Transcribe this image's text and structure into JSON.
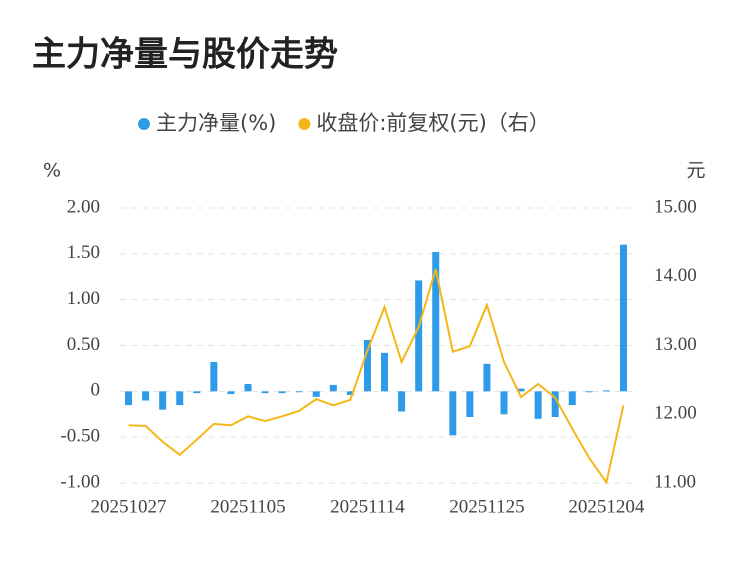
{
  "chart_data": {
    "type": "bar-line",
    "title": "主力净量与股价走势",
    "y_label": "%",
    "y2_label": "元",
    "categories": [
      "20251027",
      null,
      null,
      null,
      null,
      null,
      null,
      "20251105",
      null,
      null,
      null,
      null,
      null,
      null,
      "20251114",
      null,
      null,
      null,
      null,
      null,
      null,
      "20251125",
      null,
      null,
      null,
      null,
      null,
      null,
      "20251204",
      null
    ],
    "series": [
      {
        "name": "主力净量(%)",
        "type": "bar",
        "color": "#2e9be8",
        "values": [
          -0.15,
          -0.1,
          -0.2,
          -0.15,
          -0.02,
          0.32,
          -0.03,
          0.08,
          -0.02,
          -0.02,
          -0.01,
          -0.06,
          0.07,
          -0.04,
          0.56,
          0.42,
          -0.22,
          1.21,
          1.52,
          -0.48,
          -0.28,
          0.3,
          -0.25,
          0.03,
          -0.3,
          -0.28,
          -0.15,
          -0.01,
          0.01,
          1.6
        ]
      },
      {
        "name": "收盘价:前复权(元)（右）",
        "type": "line",
        "axis": "y2",
        "color": "#f5b717",
        "values": [
          11.84,
          11.83,
          11.6,
          11.41,
          11.63,
          11.86,
          11.84,
          11.97,
          11.9,
          11.97,
          12.05,
          12.22,
          12.13,
          12.21,
          12.93,
          13.56,
          12.76,
          13.27,
          14.11,
          12.91,
          12.99,
          13.59,
          12.76,
          12.25,
          12.44,
          12.24,
          11.79,
          11.36,
          11.01,
          12.13
        ]
      }
    ],
    "ylim": [
      -1,
      2
    ],
    "yticks": [
      {
        "value": -1,
        "label": "-1.00"
      },
      {
        "value": -0.5,
        "label": "-0.50"
      },
      0,
      {
        "value": 0.5,
        "label": "0.50"
      },
      {
        "value": 1,
        "label": "1.00"
      },
      {
        "value": 1.5,
        "label": "1.50"
      },
      {
        "value": 2,
        "label": "2.00"
      }
    ],
    "y2lim": [
      11,
      15
    ],
    "y2ticks": [
      {
        "value": 11,
        "label": "11.00"
      },
      {
        "value": 12,
        "label": "12.00"
      },
      {
        "value": 13,
        "label": "13.00"
      },
      {
        "value": 14,
        "label": "14.00"
      },
      {
        "value": 15,
        "label": "15.00"
      }
    ],
    "grid": true,
    "legend": "top"
  }
}
